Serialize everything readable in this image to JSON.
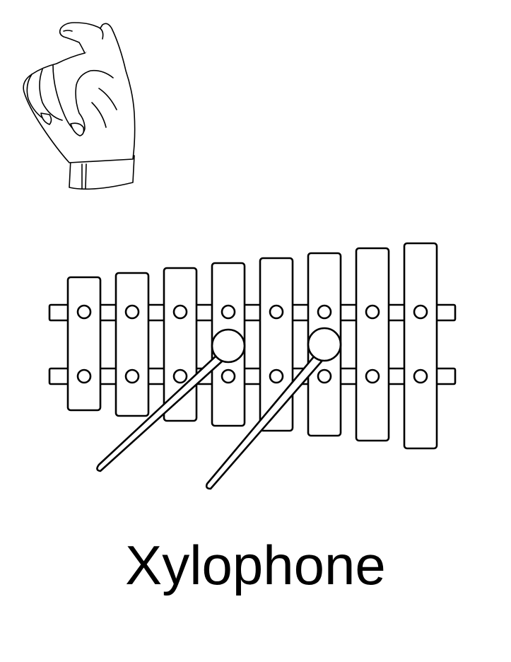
{
  "caption": {
    "word": "Xylophone"
  },
  "illustration": {
    "hand_sign": "asl-letter-x-hand",
    "object": "xylophone-with-two-mallets",
    "bar_count": 8,
    "mallet_count": 2
  },
  "colors": {
    "line": "#000000",
    "fill": "#ffffff"
  }
}
